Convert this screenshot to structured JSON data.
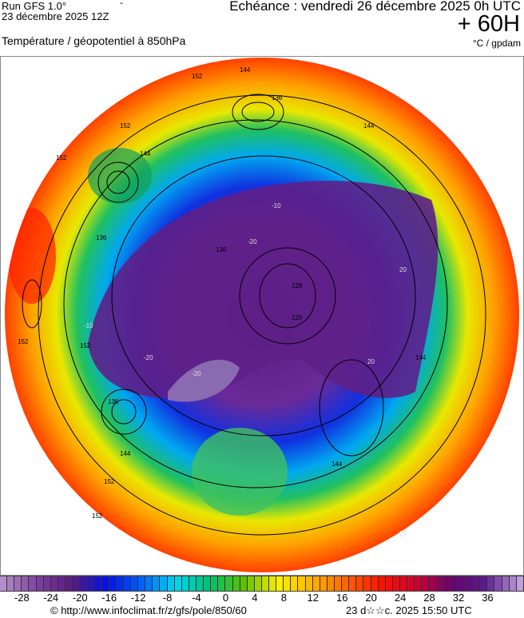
{
  "header": {
    "run": "Run GFS 1.0°",
    "run_date": "23 décembre 2025 12Z",
    "dash": "-",
    "valid": "Echéance : vendredi 26 décembre 2025 0h UTC",
    "lead": "+ 60H",
    "parameter": "Température / géopotentiel à 850hPa",
    "units": "°C / gpdam"
  },
  "map": {
    "projection": "north polar stereographic",
    "contour_labels": [
      "152",
      "144",
      "136",
      "152",
      "144",
      "152",
      "144",
      "136",
      "128",
      "120",
      "136",
      "144",
      "152",
      "152",
      "144",
      "136",
      "144",
      "152",
      "152"
    ],
    "isotherm_labels": [
      "-20",
      "-20",
      "-10",
      "-10",
      "20",
      "20",
      "20",
      "-20"
    ]
  },
  "colorbar": {
    "min": -31,
    "max": 41,
    "step": 1,
    "stops": [
      "#b28fc8",
      "#7d3f9e",
      "#5a1a80",
      "#0010e8",
      "#0060ff",
      "#00d8f0",
      "#00c070",
      "#60c000",
      "#fff000",
      "#ffb000",
      "#ff6000",
      "#ff1000",
      "#d00030",
      "#6a0070",
      "#5a1a90",
      "#c0a0d8"
    ],
    "tick_labels": [
      "-28",
      "-24",
      "-20",
      "-16",
      "-12",
      "-8",
      "-4",
      "0",
      "4",
      "8",
      "12",
      "16",
      "20",
      "24",
      "28",
      "32",
      "36"
    ]
  },
  "footer": {
    "credit": "© http://www.infoclimat.fr/z/gfs/pole/850/60",
    "generated": "23 d☆☆c. 2025 15:50 UTC"
  }
}
